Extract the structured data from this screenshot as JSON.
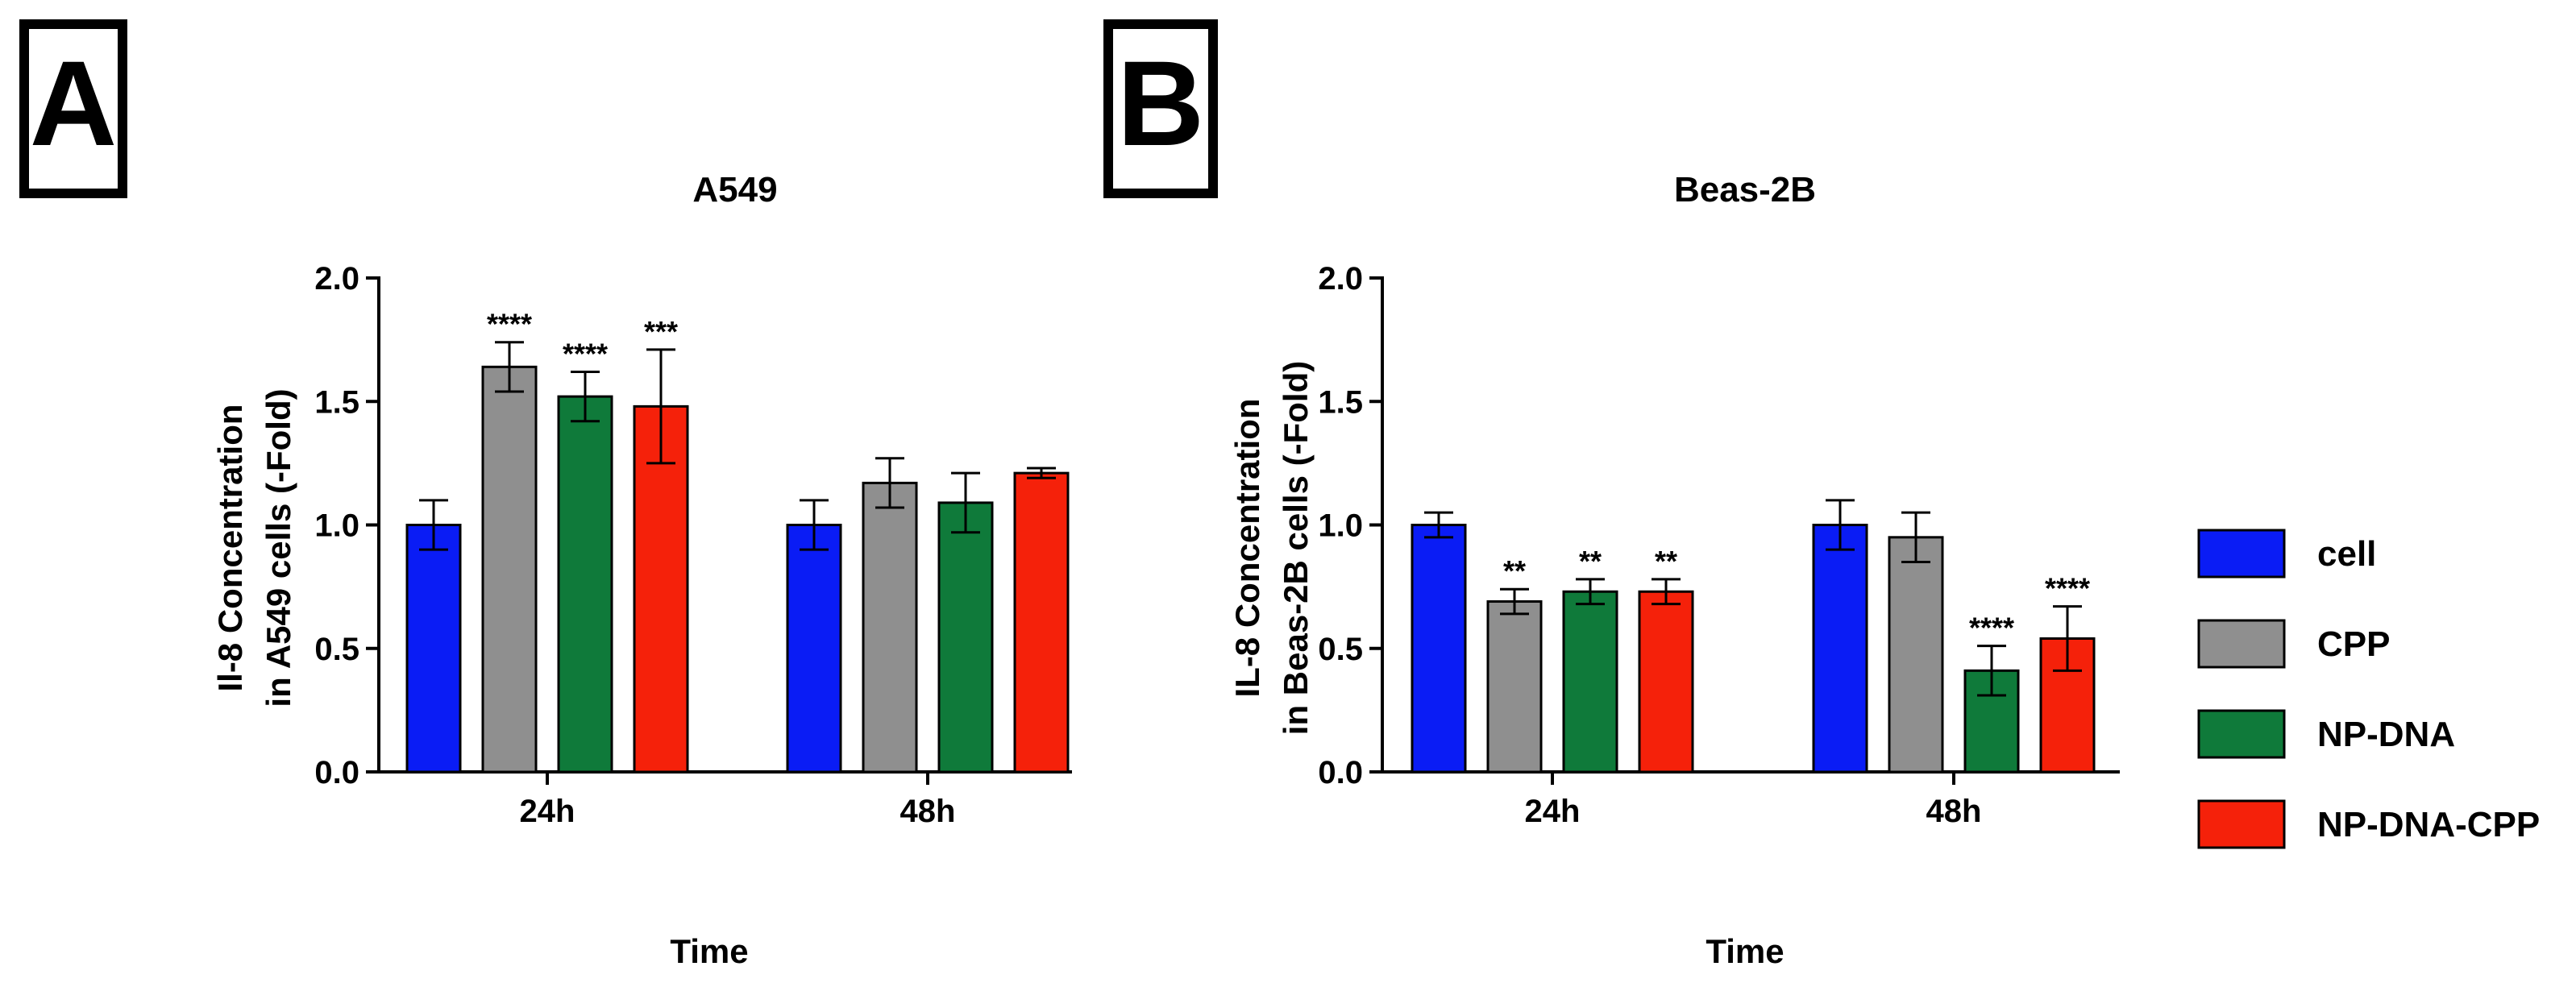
{
  "panels": [
    {
      "letter": "A"
    },
    {
      "letter": "B"
    }
  ],
  "legend": [
    {
      "label": "cell",
      "color": "#0a1cf5"
    },
    {
      "label": "CPP",
      "color": "#8f8f8f"
    },
    {
      "label": "NP-DNA",
      "color": "#0f7a3a"
    },
    {
      "label": "NP-DNA-CPP",
      "color": "#f5210a"
    }
  ],
  "chart_data": [
    {
      "type": "bar",
      "title": "A549",
      "xlabel": "Time",
      "ylabel_lines": [
        "Il-8 Concentration",
        "in A549 cells (-Fold)"
      ],
      "categories": [
        "24h",
        "48h"
      ],
      "ylim": [
        0,
        2.0
      ],
      "yticks": [
        "0.0",
        "0.5",
        "1.0",
        "1.5",
        "2.0"
      ],
      "series": [
        {
          "name": "cell",
          "color": "#0a1cf5",
          "values": [
            1.0,
            1.0
          ],
          "errors": [
            0.1,
            0.1
          ],
          "annotations": [
            "",
            ""
          ]
        },
        {
          "name": "CPP",
          "color": "#8f8f8f",
          "values": [
            1.64,
            1.17
          ],
          "errors": [
            0.1,
            0.1
          ],
          "annotations": [
            "****",
            ""
          ]
        },
        {
          "name": "NP-DNA",
          "color": "#0f7a3a",
          "values": [
            1.52,
            1.09
          ],
          "errors": [
            0.1,
            0.12
          ],
          "annotations": [
            "****",
            ""
          ]
        },
        {
          "name": "NP-DNA-CPP",
          "color": "#f5210a",
          "values": [
            1.48,
            1.21
          ],
          "errors": [
            0.23,
            0.02
          ],
          "annotations": [
            "***",
            ""
          ]
        }
      ]
    },
    {
      "type": "bar",
      "title": "Beas-2B",
      "xlabel": "Time",
      "ylabel_lines": [
        "IL-8 Concentration",
        "in Beas-2B cells (-Fold)"
      ],
      "categories": [
        "24h",
        "48h"
      ],
      "ylim": [
        0,
        2.0
      ],
      "yticks": [
        "0.0",
        "0.5",
        "1.0",
        "1.5",
        "2.0"
      ],
      "series": [
        {
          "name": "cell",
          "color": "#0a1cf5",
          "values": [
            1.0,
            1.0
          ],
          "errors": [
            0.05,
            0.1
          ],
          "annotations": [
            "",
            ""
          ]
        },
        {
          "name": "CPP",
          "color": "#8f8f8f",
          "values": [
            0.69,
            0.95
          ],
          "errors": [
            0.05,
            0.1
          ],
          "annotations": [
            "**",
            ""
          ]
        },
        {
          "name": "NP-DNA",
          "color": "#0f7a3a",
          "values": [
            0.73,
            0.41
          ],
          "errors": [
            0.05,
            0.1
          ],
          "annotations": [
            "**",
            "****"
          ]
        },
        {
          "name": "NP-DNA-CPP",
          "color": "#f5210a",
          "values": [
            0.73,
            0.54
          ],
          "errors": [
            0.05,
            0.13
          ],
          "annotations": [
            "**",
            "****"
          ]
        }
      ]
    }
  ]
}
